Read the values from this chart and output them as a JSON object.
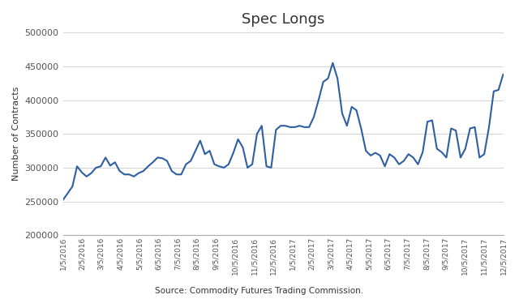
{
  "title": "Spec Longs",
  "ylabel": "Number of Contracts",
  "source_text": "Source: Commodity Futures Trading Commission.",
  "line_color": "#2E5FA3",
  "background_color": "#ffffff",
  "ylim": [
    200000,
    500000
  ],
  "yticks": [
    200000,
    250000,
    300000,
    350000,
    400000,
    450000,
    500000
  ],
  "x_labels": [
    "1/5/2016",
    "2/5/2016",
    "3/5/2016",
    "4/5/2016",
    "5/5/2016",
    "6/5/2016",
    "7/5/2016",
    "8/5/2016",
    "9/5/2016",
    "10/5/2016",
    "11/5/2016",
    "12/5/2016",
    "1/5/2017",
    "2/5/2017",
    "3/5/2017",
    "4/5/2017",
    "5/5/2017",
    "6/5/2017",
    "7/5/2017",
    "8/5/2017",
    "9/5/2017",
    "10/5/2017",
    "11/5/2017",
    "12/5/2017"
  ],
  "values": [
    252000,
    262000,
    272000,
    302000,
    293000,
    287000,
    292000,
    300000,
    302000,
    315000,
    303000,
    308000,
    295000,
    290000,
    290000,
    287000,
    292000,
    295000,
    302000,
    308000,
    315000,
    314000,
    310000,
    295000,
    290000,
    290000,
    305000,
    310000,
    325000,
    340000,
    320000,
    325000,
    305000,
    302000,
    300000,
    305000,
    322000,
    342000,
    330000,
    300000,
    305000,
    350000,
    362000,
    302000,
    300000,
    356000,
    362000,
    362000,
    360000,
    360000,
    362000,
    360000,
    360000,
    375000,
    400000,
    427000,
    432000,
    455000,
    432000,
    380000,
    362000,
    390000,
    385000,
    358000,
    325000,
    318000,
    322000,
    318000,
    302000,
    320000,
    315000,
    305000,
    310000,
    320000,
    315000,
    305000,
    323000,
    368000,
    370000,
    328000,
    323000,
    315000,
    358000,
    355000,
    315000,
    328000,
    358000,
    360000,
    315000,
    320000,
    360000,
    413000,
    415000,
    438000
  ]
}
